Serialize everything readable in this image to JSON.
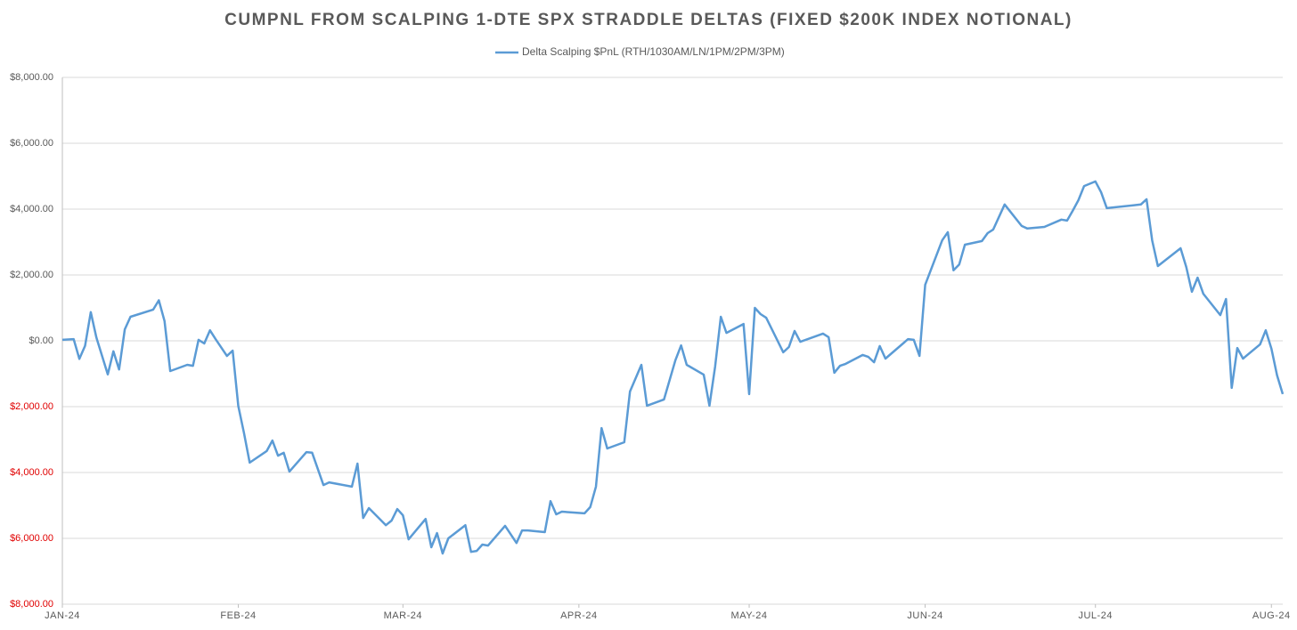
{
  "chart_data": {
    "type": "line",
    "title": "CUMPNL FROM SCALPING 1-DTE SPX STRADDLE DELTAS (FIXED $200K INDEX NOTIONAL)",
    "x": [
      0,
      2,
      3,
      4,
      5,
      6,
      8,
      9,
      10,
      11,
      12,
      16,
      17,
      18,
      19,
      22,
      23,
      24,
      25,
      26,
      27,
      29,
      30,
      31,
      32,
      33,
      36,
      37,
      38,
      39,
      40,
      43,
      44,
      46,
      47,
      51,
      52,
      53,
      54,
      57,
      58,
      59,
      60,
      61,
      64,
      65,
      66,
      67,
      68,
      71,
      72,
      73,
      74,
      75,
      78,
      80,
      81,
      82,
      85,
      86,
      87,
      88,
      92,
      93,
      94,
      95,
      96,
      99,
      100,
      102,
      103,
      106,
      108,
      109,
      110,
      113,
      114,
      115,
      116,
      117,
      120,
      121,
      122,
      123,
      124,
      127,
      128,
      129,
      130,
      134,
      135,
      136,
      137,
      138,
      141,
      142,
      143,
      144,
      145,
      149,
      150,
      151,
      152,
      155,
      156,
      157,
      158,
      159,
      162,
      163,
      164,
      166,
      169,
      170,
      173,
      176,
      177,
      178,
      179,
      180,
      182,
      183,
      184,
      190,
      191,
      192,
      193,
      197,
      198,
      199,
      200,
      201,
      204,
      205,
      206,
      207,
      208,
      211,
      212,
      213,
      214,
      215
    ],
    "series": [
      {
        "name": "Delta Scalping $PnL (RTH/1030AM/LN/1PM/2PM/3PM)",
        "color": "#5b9bd5",
        "values": [
          30,
          50,
          -550,
          -150,
          870,
          100,
          -1020,
          -320,
          -870,
          350,
          730,
          950,
          1230,
          600,
          -920,
          -730,
          -760,
          30,
          -80,
          320,
          50,
          -460,
          -300,
          -1980,
          -2800,
          -3700,
          -3350,
          -3030,
          -3490,
          -3400,
          -3970,
          -3380,
          -3400,
          -4380,
          -4300,
          -4430,
          -3730,
          -5380,
          -5080,
          -5600,
          -5460,
          -5110,
          -5300,
          -6030,
          -5410,
          -6270,
          -5840,
          -6460,
          -6000,
          -5600,
          -6410,
          -6380,
          -6190,
          -6220,
          -5620,
          -6140,
          -5760,
          -5760,
          -5810,
          -4870,
          -5270,
          -5190,
          -5240,
          -5050,
          -4430,
          -2650,
          -3270,
          -3080,
          -1540,
          -730,
          -1970,
          -1780,
          -590,
          -140,
          -730,
          -1030,
          -1970,
          -780,
          730,
          240,
          510,
          -1620,
          1000,
          810,
          700,
          -350,
          -190,
          300,
          -30,
          220,
          110,
          -970,
          -760,
          -700,
          -430,
          -490,
          -650,
          -160,
          -540,
          50,
          30,
          -460,
          1700,
          3050,
          3300,
          2140,
          2320,
          2920,
          3030,
          3270,
          3380,
          4140,
          3490,
          3410,
          3460,
          3680,
          3650,
          3950,
          4270,
          4700,
          4840,
          4510,
          4030,
          4140,
          4300,
          3050,
          2270,
          2810,
          2240,
          1490,
          1920,
          1430,
          780,
          1270,
          -1430,
          -220,
          -540,
          -110,
          320,
          -240,
          -1050,
          -1620
        ]
      }
    ],
    "xlim": [
      0,
      215
    ],
    "xticks": [
      {
        "value": 0,
        "label": "JAN-24"
      },
      {
        "value": 31,
        "label": "FEB-24"
      },
      {
        "value": 60,
        "label": "MAR-24"
      },
      {
        "value": 91,
        "label": "APR-24"
      },
      {
        "value": 121,
        "label": "MAY-24"
      },
      {
        "value": 152,
        "label": "JUN-24"
      },
      {
        "value": 182,
        "label": "JUL-24"
      },
      {
        "value": 213,
        "label": "AUG-24"
      }
    ],
    "ylim": [
      -8000,
      8000
    ],
    "yticks": [
      {
        "value": -8000,
        "label": "$8,000.00"
      },
      {
        "value": -6000,
        "label": "$6,000.00"
      },
      {
        "value": -4000,
        "label": "$4,000.00"
      },
      {
        "value": -2000,
        "label": "$2,000.00"
      },
      {
        "value": 0,
        "label": "$0.00"
      },
      {
        "value": 2000,
        "label": "$2,000.00"
      },
      {
        "value": 4000,
        "label": "$4,000.00"
      },
      {
        "value": 6000,
        "label": "$6,000.00"
      },
      {
        "value": 8000,
        "label": "$8,000.00"
      }
    ],
    "negative_tick_color": "#e00000",
    "grid": true,
    "legend": "top"
  }
}
